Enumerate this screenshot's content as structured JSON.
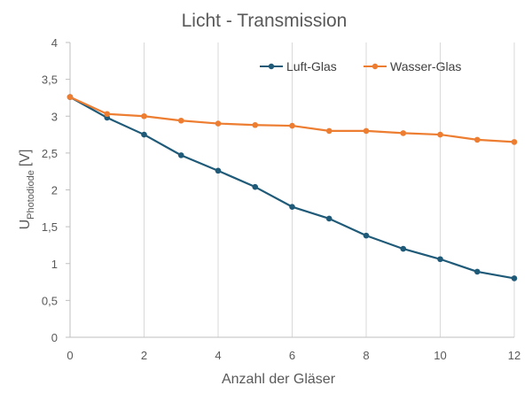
{
  "chart_data": {
    "type": "line",
    "title": "Licht - Transmission",
    "xlabel": "Anzahl der Gläser",
    "ylabel_main": "U",
    "ylabel_sub": "Photodiode",
    "ylabel_unit": "[V]",
    "xlim": [
      0,
      12
    ],
    "ylim": [
      0,
      4
    ],
    "xticks": [
      "0",
      "2",
      "4",
      "6",
      "8",
      "10",
      "12"
    ],
    "yticks": [
      "0",
      "0,5",
      "1",
      "1,5",
      "2",
      "2,5",
      "3",
      "3,5",
      "4"
    ],
    "grid": "vertical",
    "legend_position": "top-right",
    "x": [
      0,
      1,
      2,
      3,
      4,
      5,
      6,
      7,
      8,
      9,
      10,
      11,
      12
    ],
    "series": [
      {
        "name": "Luft-Glas",
        "color": "#1f5a78",
        "values": [
          3.26,
          2.98,
          2.75,
          2.47,
          2.26,
          2.04,
          1.77,
          1.61,
          1.38,
          1.2,
          1.06,
          0.89,
          0.8
        ]
      },
      {
        "name": "Wasser-Glas",
        "color": "#ed7d31",
        "values": [
          3.26,
          3.03,
          3.0,
          2.94,
          2.9,
          2.88,
          2.87,
          2.8,
          2.8,
          2.77,
          2.75,
          2.68,
          2.65
        ]
      }
    ]
  }
}
